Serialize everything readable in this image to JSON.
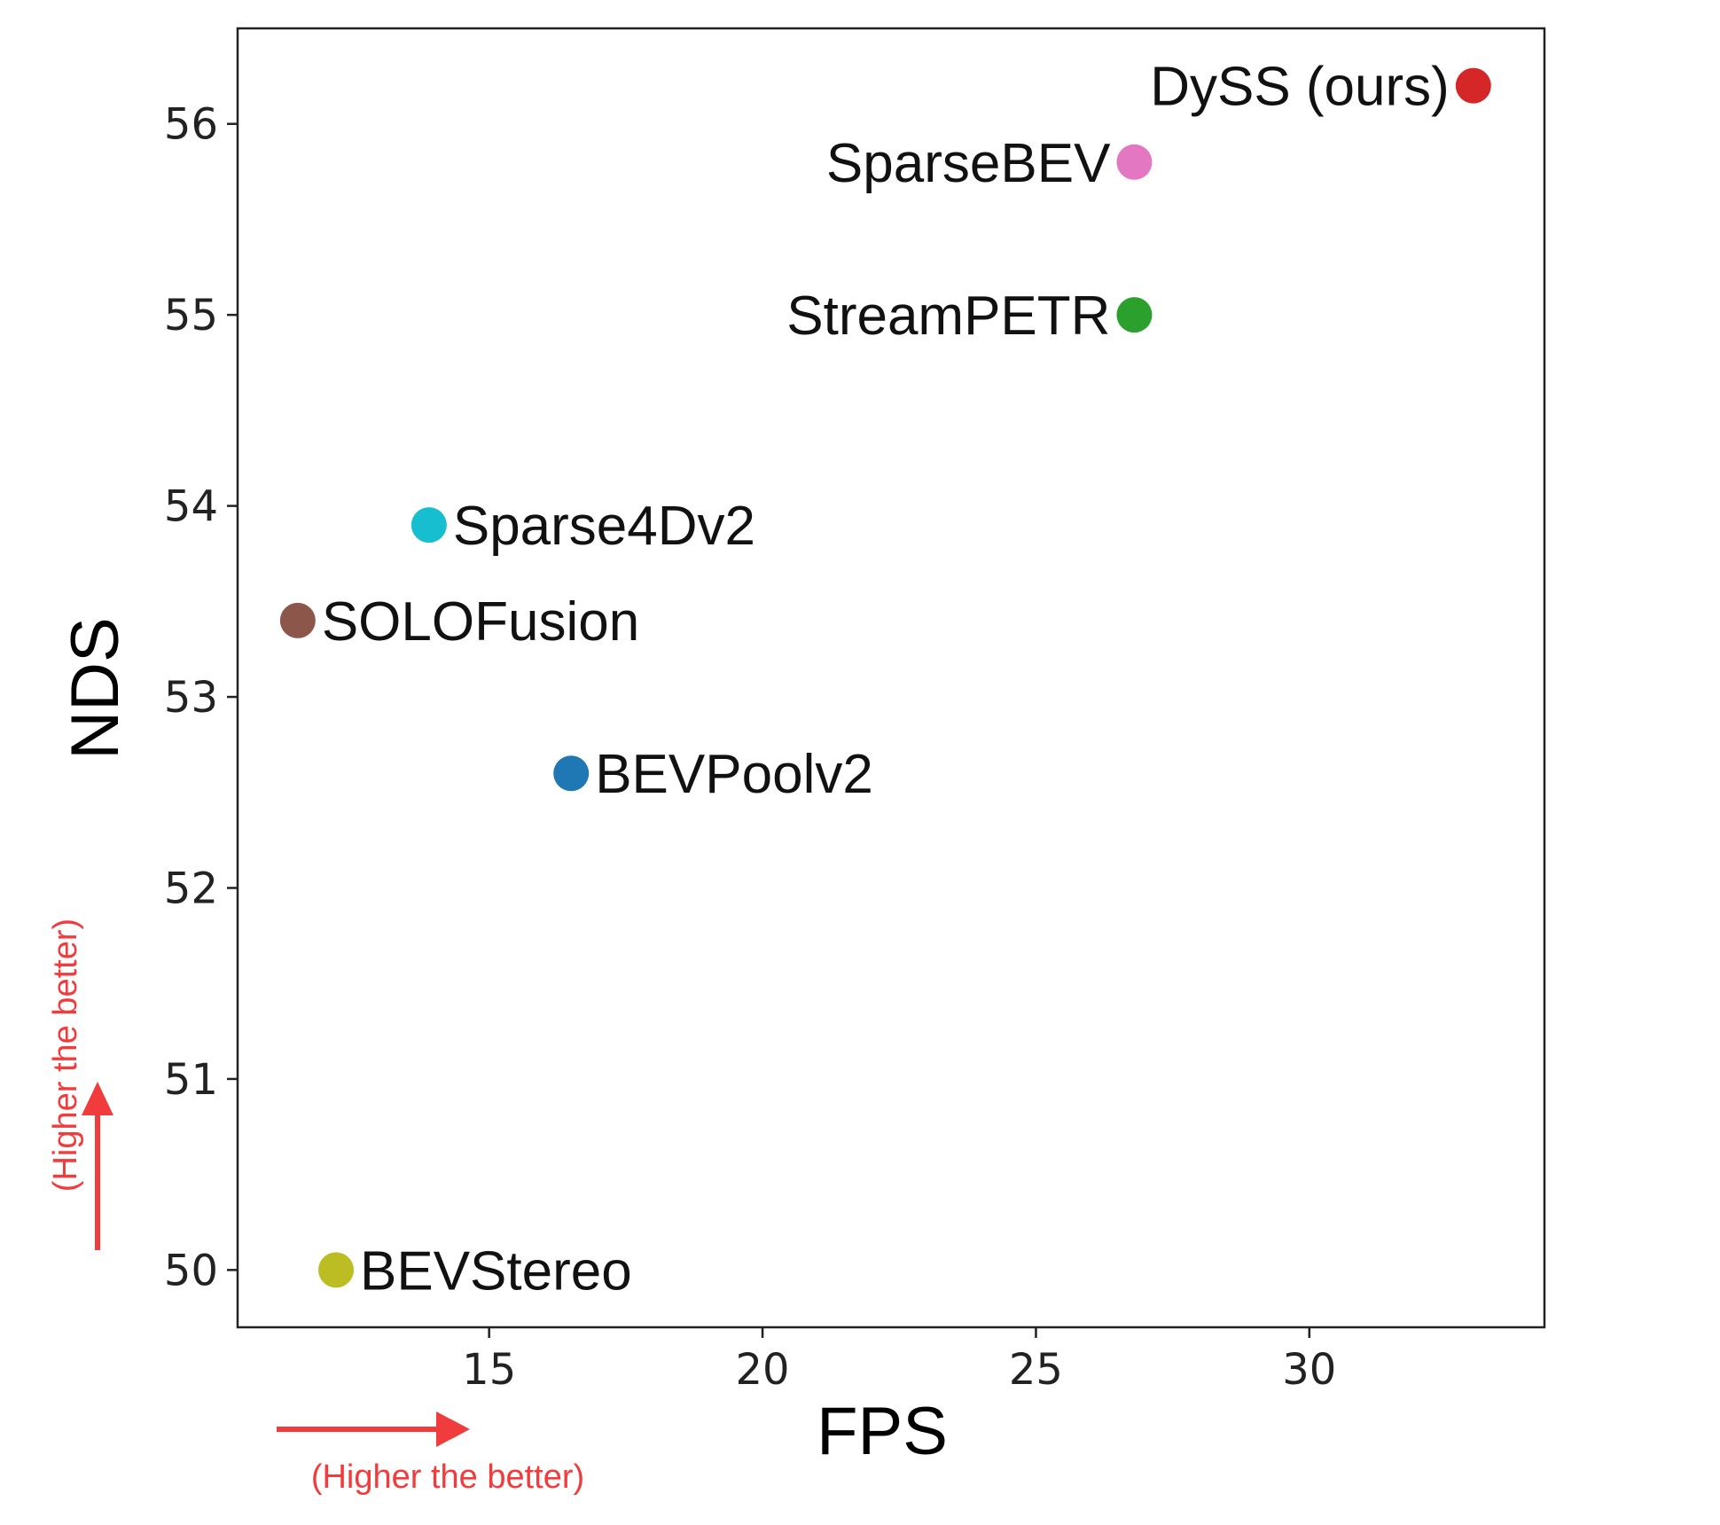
{
  "chart_data": {
    "type": "scatter",
    "xlabel": "FPS",
    "ylabel": "NDS",
    "xlim": [
      10.4,
      34.3
    ],
    "ylim": [
      49.7,
      56.5
    ],
    "xticks": [
      "15",
      "20",
      "25",
      "30"
    ],
    "yticks": [
      "50",
      "51",
      "52",
      "53",
      "54",
      "55",
      "56"
    ],
    "grid": false,
    "points": [
      {
        "name": "DySS (ours)",
        "x": 33.0,
        "y": 56.2,
        "color": "#d62728",
        "label_side": "left"
      },
      {
        "name": "SparseBEV",
        "x": 26.8,
        "y": 55.8,
        "color": "#e377c2",
        "label_side": "left"
      },
      {
        "name": "StreamPETR",
        "x": 26.8,
        "y": 55.0,
        "color": "#2ca02c",
        "label_side": "left"
      },
      {
        "name": "Sparse4Dv2",
        "x": 13.9,
        "y": 53.9,
        "color": "#17becf",
        "label_side": "right"
      },
      {
        "name": "SOLOFusion",
        "x": 11.5,
        "y": 53.4,
        "color": "#8c564b",
        "label_side": "right"
      },
      {
        "name": "BEVPoolv2",
        "x": 16.5,
        "y": 52.6,
        "color": "#1f77b4",
        "label_side": "right"
      },
      {
        "name": "BEVStereo",
        "x": 12.2,
        "y": 50.0,
        "color": "#bcbd22",
        "label_side": "right"
      }
    ],
    "annotations": {
      "y_note": "(Higher the better)",
      "x_note": "(Higher the better)",
      "note_color": "#f03c3c"
    }
  }
}
